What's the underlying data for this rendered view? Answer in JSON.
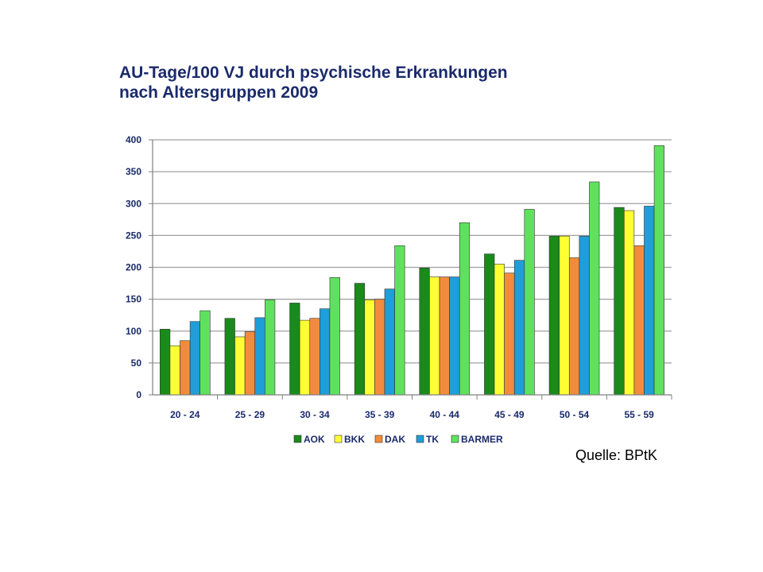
{
  "page": {
    "title_line1": "AU-Tage/100 VJ durch psychische Erkrankungen",
    "title_line2": "nach Altersgruppen 2009",
    "source": "Quelle: BPtK"
  },
  "chart_data": {
    "type": "bar",
    "title": "AU-Tage/100 VJ durch psychische Erkrankungen nach Altersgruppen 2009",
    "xlabel": "",
    "ylabel": "",
    "ylim": [
      0,
      400
    ],
    "yticks": [
      0,
      50,
      100,
      150,
      200,
      250,
      300,
      350,
      400
    ],
    "grid": true,
    "legend_position": "bottom",
    "categories": [
      "20 - 24",
      "25 - 29",
      "30 - 34",
      "35 - 39",
      "40 - 44",
      "45 - 49",
      "50 - 54",
      "55 - 59"
    ],
    "series": [
      {
        "name": "AOK",
        "color": "#1a8a1a",
        "values": [
          103,
          120,
          144,
          175,
          199,
          221,
          249,
          294
        ]
      },
      {
        "name": "BKK",
        "color": "#ffff33",
        "values": [
          77,
          91,
          117,
          149,
          185,
          205,
          249,
          289
        ]
      },
      {
        "name": "DAK",
        "color": "#f28c3c",
        "values": [
          85,
          99,
          120,
          150,
          185,
          191,
          215,
          234
        ]
      },
      {
        "name": "TK",
        "color": "#1f9ed9",
        "values": [
          115,
          121,
          135,
          166,
          185,
          211,
          249,
          296
        ]
      },
      {
        "name": "BARMER",
        "color": "#5ee25e",
        "values": [
          132,
          149,
          184,
          234,
          270,
          291,
          334,
          391
        ]
      }
    ]
  }
}
